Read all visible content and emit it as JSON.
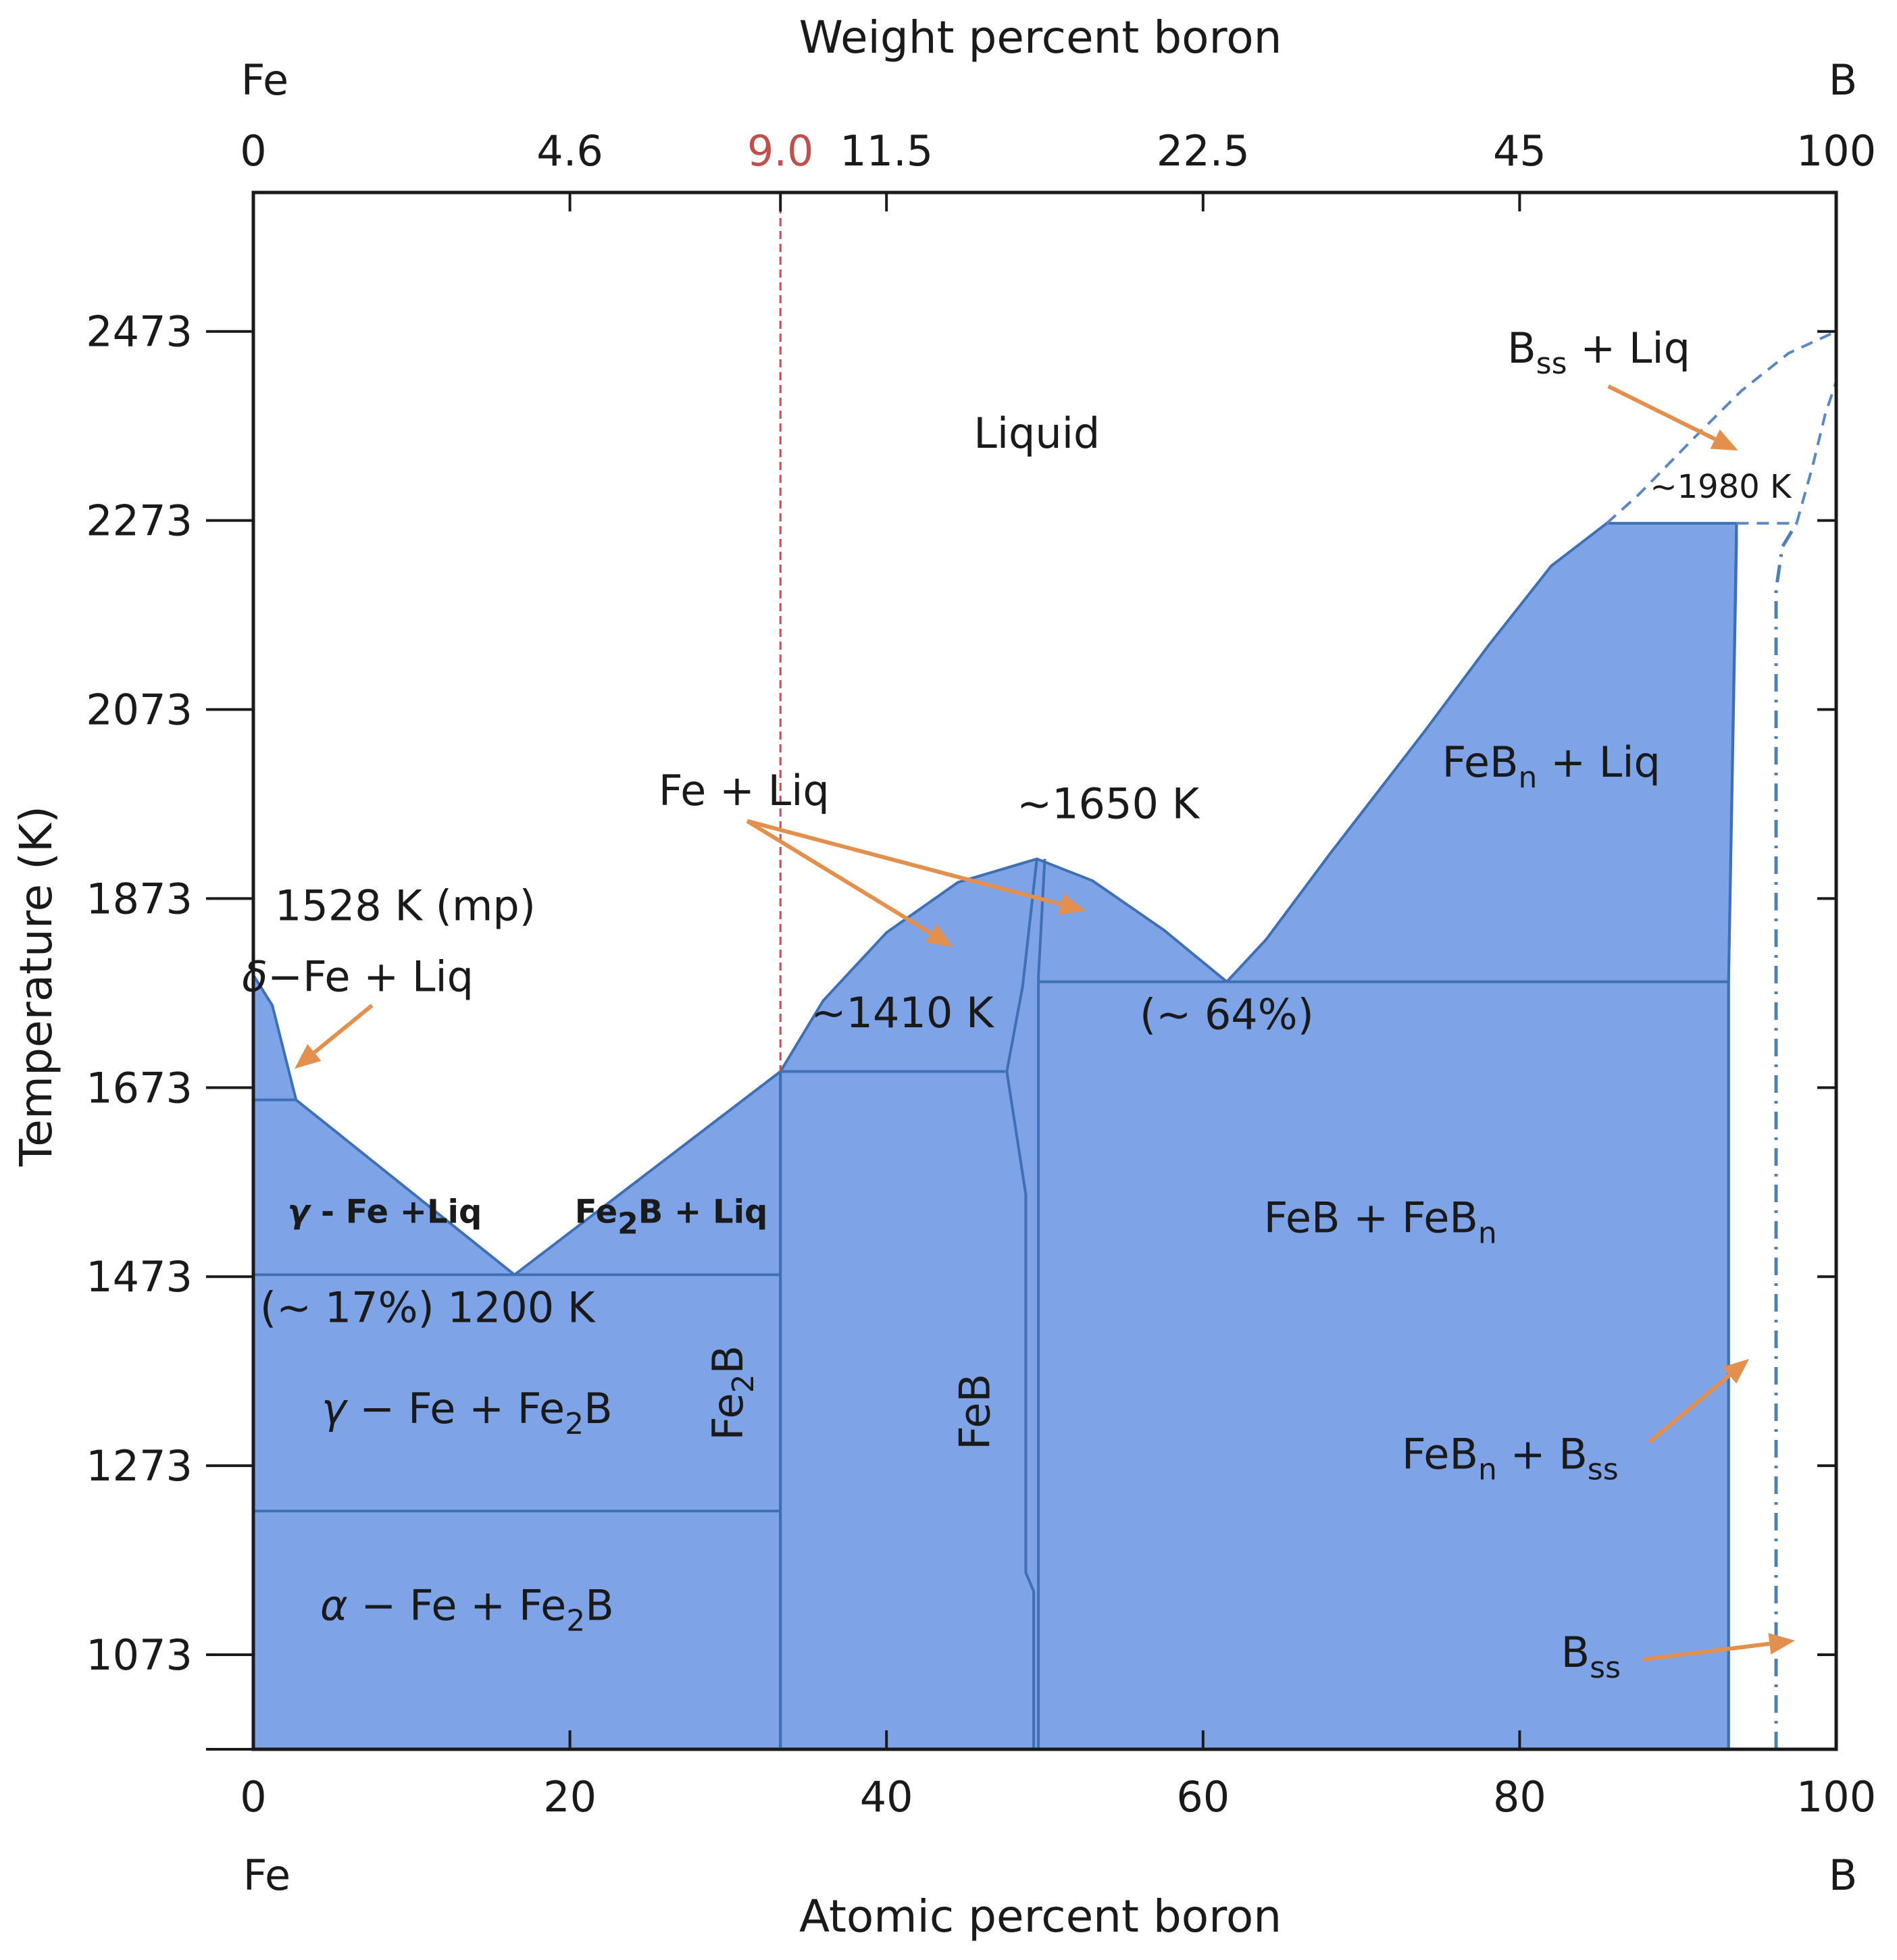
{
  "chart_data": {
    "type": "phase-diagram",
    "top_axis": {
      "title": "Weight percent boron",
      "left_end_label": "Fe",
      "right_end_label": "B",
      "ticks": [
        {
          "label": "0",
          "at_atomic": 0
        },
        {
          "label": "4.6",
          "at_atomic": 20
        },
        {
          "label": "9.0",
          "at_atomic": 33.3,
          "highlight": true
        },
        {
          "label": "11.5",
          "at_atomic": 40
        },
        {
          "label": "22.5",
          "at_atomic": 60
        },
        {
          "label": "45",
          "at_atomic": 80
        },
        {
          "label": "100",
          "at_atomic": 100
        }
      ]
    },
    "bottom_axis": {
      "title": "Atomic percent boron",
      "left_end_label": "Fe",
      "right_end_label": "B",
      "range": [
        0,
        100
      ],
      "ticks": [
        {
          "label": "0",
          "value": 0
        },
        {
          "label": "20",
          "value": 20
        },
        {
          "label": "40",
          "value": 40
        },
        {
          "label": "60",
          "value": 60
        },
        {
          "label": "80",
          "value": 80
        },
        {
          "label": "100",
          "value": 100
        }
      ]
    },
    "y_axis": {
      "title": "Temperature (K)",
      "range": [
        973,
        2620
      ],
      "ticks": [
        {
          "label": "1073",
          "value": 1073
        },
        {
          "label": "1273",
          "value": 1273
        },
        {
          "label": "1473",
          "value": 1473
        },
        {
          "label": "1673",
          "value": 1673
        },
        {
          "label": "1873",
          "value": 1873
        },
        {
          "label": "2073",
          "value": 2073
        },
        {
          "label": "2273",
          "value": 2273
        },
        {
          "label": "2473",
          "value": 2473
        }
      ]
    },
    "fill_color": "#7ea3e6",
    "line_color": "#3f6fb5",
    "arrow_color": "#e3904f",
    "marker_color": "#c0504d",
    "marker_line_atomic": 33.3,
    "regions": [
      {
        "type": "region",
        "points": [
          [
            0,
            973
          ],
          [
            0,
            1660
          ],
          [
            2.7,
            1660
          ],
          [
            16.5,
            1475
          ],
          [
            33.3,
            1690
          ],
          [
            33.3,
            973
          ]
        ]
      },
      {
        "type": "region",
        "points": [
          [
            0,
            1792
          ],
          [
            1.2,
            1760
          ],
          [
            2.7,
            1660
          ],
          [
            0,
            1660
          ]
        ]
      },
      {
        "type": "region",
        "points": [
          [
            33.3,
            1690
          ],
          [
            36,
            1765
          ],
          [
            40,
            1837
          ],
          [
            44.5,
            1890
          ],
          [
            49.5,
            1915
          ],
          [
            53,
            1892
          ],
          [
            57.5,
            1840
          ],
          [
            61.5,
            1785
          ],
          [
            64,
            1830
          ],
          [
            68,
            1920
          ],
          [
            74,
            2050
          ],
          [
            78,
            2140
          ],
          [
            82,
            2225
          ],
          [
            85.5,
            2270
          ],
          [
            93.7,
            2270
          ],
          [
            93.7,
            2245
          ],
          [
            93.2,
            1785
          ],
          [
            93.2,
            973
          ],
          [
            33.3,
            973
          ]
        ]
      }
    ],
    "boundaries": [
      {
        "type": "line",
        "points": [
          [
            0,
            1475
          ],
          [
            33.3,
            1475
          ]
        ]
      },
      {
        "type": "line",
        "points": [
          [
            0,
            1225
          ],
          [
            33.3,
            1225
          ]
        ]
      },
      {
        "type": "line",
        "points": [
          [
            33.3,
            973
          ],
          [
            33.3,
            1690
          ]
        ]
      },
      {
        "type": "line",
        "points": [
          [
            33.3,
            1690
          ],
          [
            47.5,
            1690
          ]
        ]
      },
      {
        "type": "line",
        "points": [
          [
            49.6,
            1785
          ],
          [
            93.2,
            1785
          ]
        ]
      },
      {
        "type": "line",
        "points": [
          [
            49.3,
            973
          ],
          [
            49.3,
            1140
          ],
          [
            48.8,
            1160
          ],
          [
            48.8,
            1560
          ],
          [
            47.6,
            1690
          ],
          [
            48.6,
            1780
          ],
          [
            49.5,
            1915
          ]
        ]
      },
      {
        "type": "line",
        "points": [
          [
            49.6,
            973
          ],
          [
            49.6,
            1790
          ],
          [
            50,
            1915
          ]
        ]
      },
      {
        "type": "line",
        "points": [
          [
            93.2,
            973
          ],
          [
            93.2,
            1785
          ],
          [
            93.7,
            2270
          ]
        ]
      }
    ],
    "dashed_lines": [
      {
        "type": "dashed",
        "points": [
          [
            85.5,
            2270
          ],
          [
            87.5,
            2300
          ],
          [
            91,
            2360
          ],
          [
            94,
            2410
          ],
          [
            97,
            2450
          ],
          [
            100,
            2473
          ]
        ]
      },
      {
        "type": "dashed",
        "points": [
          [
            93.7,
            2270
          ],
          [
            97.5,
            2270
          ]
        ]
      },
      {
        "type": "dashed",
        "points": [
          [
            97.5,
            2270
          ],
          [
            98.5,
            2330
          ],
          [
            99.3,
            2385
          ],
          [
            100,
            2420
          ]
        ]
      }
    ],
    "dashdot_lines": [
      {
        "type": "dashdot",
        "points": [
          [
            96.2,
            973
          ],
          [
            96.2,
            2200
          ],
          [
            96.6,
            2245
          ],
          [
            97.5,
            2270
          ]
        ]
      }
    ],
    "arrows": [
      {
        "from": [
          7.5,
          1760
        ],
        "to": [
          2.6,
          1693
        ]
      },
      {
        "from": [
          31.2,
          1955
        ],
        "to": [
          44.2,
          1822
        ]
      },
      {
        "from": [
          31.2,
          1955
        ],
        "to": [
          52.6,
          1860
        ]
      },
      {
        "from": [
          85.6,
          2415
        ],
        "to": [
          93.8,
          2347
        ]
      },
      {
        "from": [
          88.2,
          1298
        ],
        "to": [
          94.5,
          1386
        ]
      },
      {
        "from": [
          87.8,
          1068
        ],
        "to": [
          97.4,
          1088
        ]
      }
    ],
    "labels": [
      {
        "key": "liquid",
        "text": "Liquid",
        "at": [
          49.5,
          2350
        ]
      },
      {
        "key": "mp",
        "text": "1528 K (mp)",
        "at": [
          9.6,
          1850
        ]
      },
      {
        "key": "delta",
        "greek": "δ",
        "text": "−Fe + Liq",
        "at": [
          6.6,
          1775
        ]
      },
      {
        "key": "fe_liq",
        "text": "Fe + Liq",
        "at": [
          31,
          1972
        ]
      },
      {
        "key": "t1650",
        "text": "~1650 K",
        "at": [
          54,
          1958
        ]
      },
      {
        "key": "t1410",
        "text": "~1410 K",
        "at": [
          41,
          1737
        ]
      },
      {
        "key": "p64",
        "text": "(~ 64%)",
        "at": [
          61.5,
          1735
        ]
      },
      {
        "key": "t1980",
        "text": "~1980 K",
        "at": [
          92.7,
          2297
        ]
      },
      {
        "key": "bss_liq",
        "text": "B",
        "sub": "ss",
        "tail": " + Liq",
        "at": [
          85,
          2440
        ]
      },
      {
        "key": "febn_liq",
        "text": "FeB",
        "sub": "n",
        "tail": " + Liq",
        "at": [
          82,
          2002
        ]
      },
      {
        "key": "gamma_liq",
        "greek": "γ",
        "text": " - Fe +Liq",
        "at": [
          8.3,
          1530
        ]
      },
      {
        "key": "fe2b_liq",
        "text": "Fe",
        "sub": "2",
        "tail": "B + Liq",
        "at": [
          26.4,
          1530
        ]
      },
      {
        "key": "p17",
        "text": "(~ 17%) 1200 K",
        "at": [
          11,
          1425
        ]
      },
      {
        "key": "gamma_fe2b",
        "greek": "γ",
        "text": " − Fe + Fe",
        "sub": "2",
        "tail": "B",
        "at": [
          13.5,
          1318
        ]
      },
      {
        "key": "alpha_fe2b",
        "greek": "α",
        "text": " − Fe + Fe",
        "sub": "2",
        "tail": "B",
        "at": [
          13.5,
          1110
        ]
      },
      {
        "key": "fe2b",
        "text": "Fe",
        "sub": "2",
        "tail": "B",
        "at": [
          30.9,
          1350
        ],
        "rotate": -90
      },
      {
        "key": "feb",
        "text": "FeB",
        "at": [
          46.5,
          1330
        ],
        "rotate": -90
      },
      {
        "key": "feb_febn",
        "text": "FeB + FeB",
        "sub": "n",
        "at": [
          71.2,
          1520
        ]
      },
      {
        "key": "febn_bss",
        "text": "FeB",
        "sub": "n",
        "tail": " + B",
        "sub2": "ss",
        "at": [
          79.4,
          1270
        ]
      },
      {
        "key": "bss",
        "text": "B",
        "sub": "ss",
        "at": [
          84.5,
          1060
        ]
      }
    ]
  }
}
